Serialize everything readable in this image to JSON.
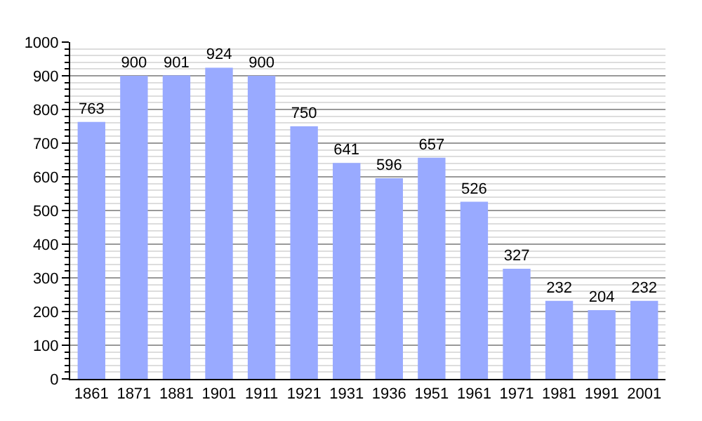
{
  "chart_data": {
    "type": "bar",
    "categories": [
      "1861",
      "1871",
      "1881",
      "1901",
      "1911",
      "1921",
      "1931",
      "1936",
      "1951",
      "1961",
      "1971",
      "1981",
      "1991",
      "2001"
    ],
    "values": [
      763,
      900,
      901,
      924,
      900,
      750,
      641,
      596,
      657,
      526,
      327,
      232,
      204,
      232
    ],
    "color": "#99aaff",
    "ylim": [
      0,
      1000
    ],
    "yticks": [
      0,
      100,
      200,
      300,
      400,
      500,
      600,
      700,
      800,
      900,
      1000
    ],
    "grid": "y",
    "data_labels": true
  }
}
